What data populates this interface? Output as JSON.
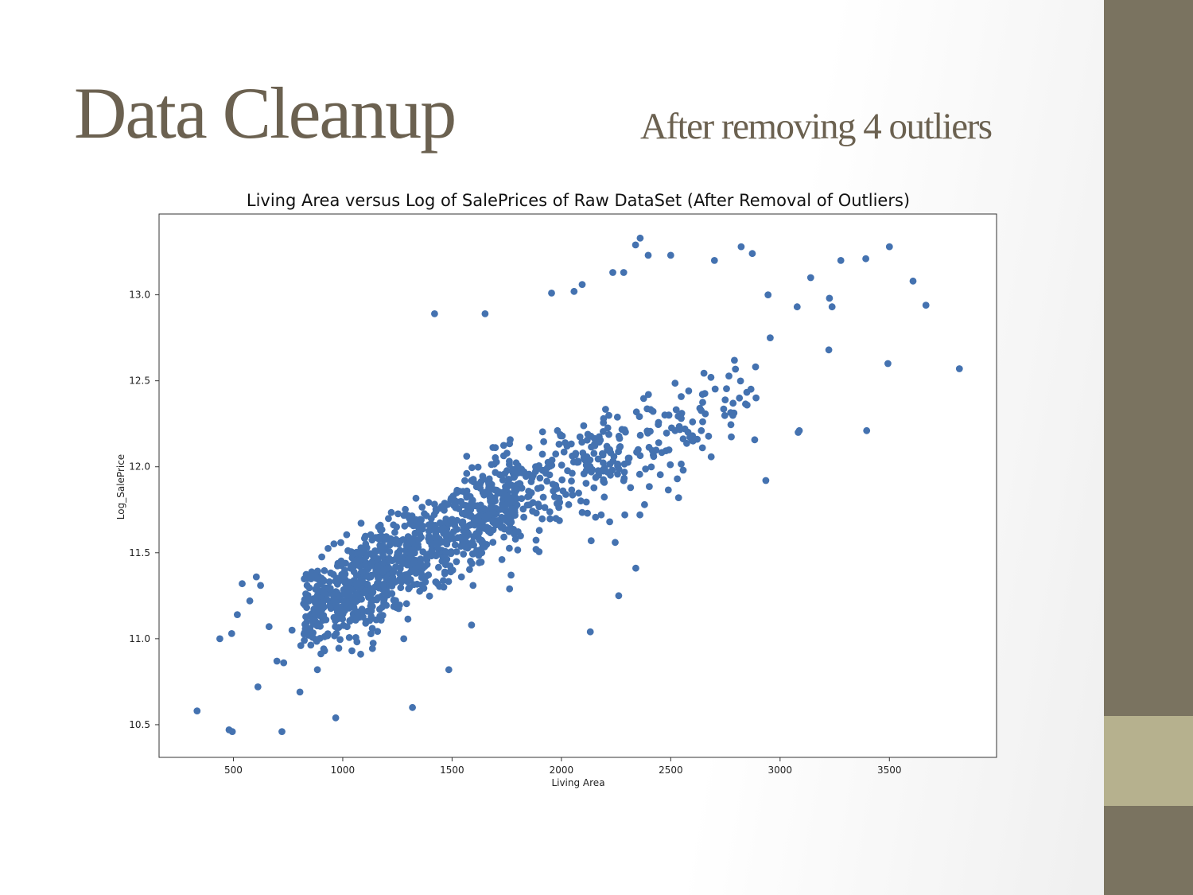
{
  "slide": {
    "title": "Data Cleanup",
    "subtitle": "After removing 4 outliers",
    "sidebar_color": "#7a7360",
    "sidebar_accent_color": "#b6b18e",
    "title_color": "#6b6150"
  },
  "chart_data": {
    "type": "scatter",
    "title": "Living Area versus Log of SalePrices of Raw DataSet (After Removal of Outliers)",
    "xlabel": "Living Area",
    "ylabel": "Log_SalePrice",
    "xlim": [
      160,
      3990
    ],
    "ylim": [
      10.31,
      13.47
    ],
    "xticks": [
      500,
      1000,
      1500,
      2000,
      2500,
      3000,
      3500
    ],
    "yticks": [
      10.5,
      11.0,
      11.5,
      12.0,
      12.5,
      13.0
    ],
    "xtick_labels": [
      "500",
      "1000",
      "1500",
      "2000",
      "2500",
      "3000",
      "3500"
    ],
    "ytick_labels": [
      "10.5",
      "11.0",
      "11.5",
      "12.0",
      "12.5",
      "13.0"
    ],
    "grid": false,
    "marker_color": "#4472b0",
    "series": [
      {
        "points": [
          [
            334,
            10.58
          ],
          [
            480,
            10.47
          ],
          [
            495,
            10.46
          ],
          [
            438,
            11.0
          ],
          [
            492,
            11.03
          ],
          [
            612,
            10.72
          ],
          [
            722,
            10.46
          ],
          [
            518,
            11.14
          ],
          [
            540,
            11.32
          ],
          [
            575,
            11.22
          ],
          [
            605,
            11.36
          ],
          [
            624,
            11.31
          ],
          [
            663,
            11.07
          ],
          [
            699,
            10.87
          ],
          [
            730,
            10.86
          ],
          [
            768,
            11.05
          ],
          [
            804,
            10.69
          ],
          [
            808,
            10.96
          ],
          [
            832,
            11.07
          ],
          [
            884,
            10.82
          ],
          [
            966,
            11.07
          ],
          [
            968,
            10.54
          ],
          [
            1042,
            10.93
          ],
          [
            1082,
            10.91
          ],
          [
            1020,
            11.07
          ],
          [
            1107,
            11.1
          ],
          [
            1130,
            11.13
          ],
          [
            1279,
            11.0
          ],
          [
            1319,
            10.6
          ],
          [
            1485,
            10.82
          ],
          [
            1589,
            11.08
          ],
          [
            2132,
            11.04
          ],
          [
            2262,
            11.25
          ],
          [
            2340,
            11.41
          ],
          [
            2935,
            11.92
          ],
          [
            3083,
            12.2
          ],
          [
            3088,
            12.21
          ],
          [
            3078,
            12.93
          ],
          [
            3140,
            13.1
          ],
          [
            3226,
            12.98
          ],
          [
            3238,
            12.93
          ],
          [
            3223,
            12.68
          ],
          [
            3278,
            13.2
          ],
          [
            3392,
            13.21
          ],
          [
            3396,
            12.21
          ],
          [
            3493,
            12.6
          ],
          [
            3500,
            13.28
          ],
          [
            3608,
            13.08
          ],
          [
            3667,
            12.94
          ],
          [
            3820,
            12.57
          ],
          [
            2945,
            13.0
          ],
          [
            2955,
            12.75
          ],
          [
            2873,
            13.24
          ],
          [
            2822,
            13.28
          ],
          [
            2360,
            13.33
          ],
          [
            2339,
            13.29
          ],
          [
            2397,
            13.23
          ],
          [
            2500,
            13.23
          ],
          [
            2700,
            13.2
          ],
          [
            2235,
            13.13
          ],
          [
            2285,
            13.13
          ],
          [
            1420,
            12.89
          ],
          [
            1651,
            12.89
          ],
          [
            2058,
            13.02
          ],
          [
            2095,
            13.06
          ],
          [
            1955,
            13.01
          ],
          [
            2536,
            11.82
          ],
          [
            2530,
            11.93
          ],
          [
            2557,
            11.98
          ],
          [
            2182,
            11.72
          ],
          [
            2221,
            11.68
          ],
          [
            2246,
            11.56
          ],
          [
            2136,
            11.57
          ],
          [
            1884,
            11.52
          ],
          [
            1763,
            11.29
          ],
          [
            1770,
            11.37
          ],
          [
            1596,
            11.31
          ],
          [
            1317,
            11.41
          ],
          [
            1375,
            11.42
          ],
          [
            1425,
            11.33
          ],
          [
            1543,
            11.36
          ],
          [
            1212,
            11.31
          ],
          [
            1238,
            11.46
          ],
          [
            1899,
            11.63
          ],
          [
            1975,
            11.7
          ],
          [
            2033,
            11.78
          ],
          [
            2119,
            11.73
          ],
          [
            2290,
            11.72
          ],
          [
            2359,
            11.72
          ],
          [
            2380,
            11.78
          ],
          [
            2445,
            12.14
          ],
          [
            2492,
            12.3
          ],
          [
            2520,
            12.21
          ],
          [
            2602,
            12.15
          ],
          [
            2621,
            12.16
          ],
          [
            2640,
            12.21
          ],
          [
            2645,
            12.11
          ]
        ]
      }
    ],
    "cloud_note": "remaining markers form the dense main cloud along the positive trend"
  }
}
